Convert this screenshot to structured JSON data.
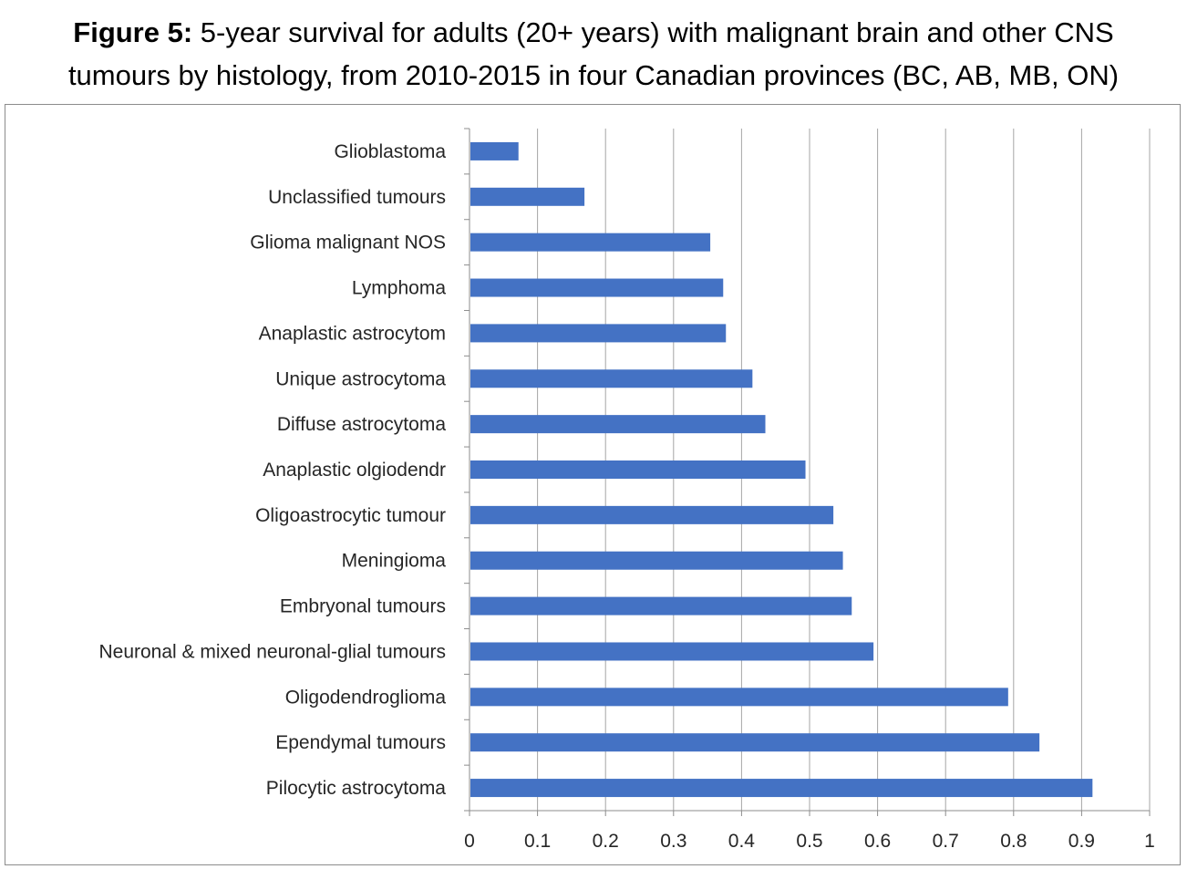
{
  "chart_data": {
    "type": "bar",
    "orientation": "horizontal",
    "title_bold": "Figure 5:",
    "title_line1": "5-year survival for adults (20+ years) with malignant brain and other CNS",
    "title_line2": "tumours by histology, from 2010-2015 in four Canadian provinces (BC, AB, MB, ON)",
    "xlabel": "",
    "ylabel": "",
    "xlim": [
      0,
      1
    ],
    "x_ticks": [
      "0",
      "0.1",
      "0.2",
      "0.3",
      "0.4",
      "0.5",
      "0.6",
      "0.7",
      "0.8",
      "0.9",
      "1"
    ],
    "grid": "vertical",
    "bar_color": "#4472C4",
    "categories": [
      "Glioblastoma",
      "Unclassified tumours",
      "Glioma malignant NOS",
      "Lymphoma",
      "Anaplastic astrocytom",
      "Unique astrocytoma",
      "Diffuse astrocytoma",
      "Anaplastic olgiodendr",
      "Oligoastrocytic tumour",
      "Meningioma",
      "Embryonal tumours",
      "Neuronal & mixed neuronal-glial tumours",
      "Oligodendroglioma",
      "Ependymal tumours",
      "Pilocytic astrocytoma"
    ],
    "values": [
      0.072,
      0.169,
      0.354,
      0.373,
      0.377,
      0.416,
      0.435,
      0.494,
      0.535,
      0.549,
      0.562,
      0.594,
      0.792,
      0.838,
      0.916
    ]
  }
}
